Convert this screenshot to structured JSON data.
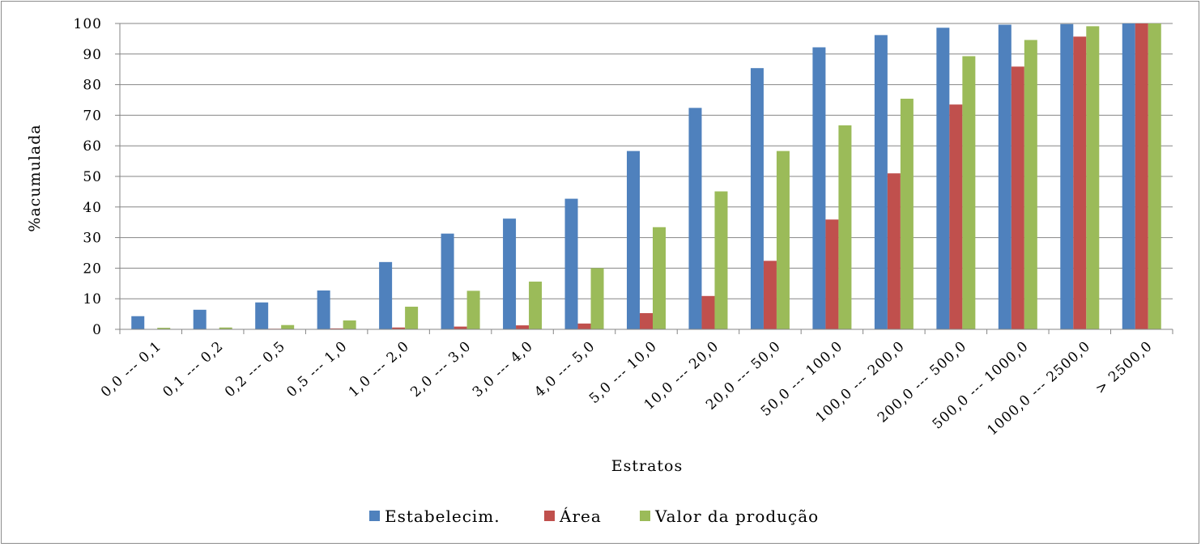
{
  "chart_data": {
    "type": "bar",
    "title": "",
    "xlabel": "Estratos",
    "ylabel": "%acumulada",
    "ylim": [
      0,
      100
    ],
    "yticks": [
      0,
      10,
      20,
      30,
      40,
      50,
      60,
      70,
      80,
      90,
      100
    ],
    "grid": "horizontal",
    "legend": "bottom",
    "categories": [
      "0,0 --- 0,1",
      "0,1 --- 0,2",
      "0,2 --- 0,5",
      "0,5 --- 1,0",
      "1,0 --- 2,0",
      "2,0 --- 3,0",
      "3,0 --- 4,0",
      "4,0 --- 5,0",
      "5,0 --- 10,0",
      "10,0 --- 20,0",
      "20,0 --- 50,0",
      "50,0 --- 100,0",
      "100,0 --- 200,0",
      "200,0 --- 500,0",
      "500,0 --- 1000,0",
      "1000,0 --- 2500,0",
      "> 2500,0"
    ],
    "series": [
      {
        "name": "Estabelecim.",
        "color": "#4f81bd",
        "values": [
          4.3,
          6.4,
          8.8,
          12.7,
          22.0,
          31.3,
          36.2,
          42.7,
          58.3,
          72.4,
          85.4,
          92.2,
          96.2,
          98.6,
          99.6,
          99.8,
          100
        ]
      },
      {
        "name": "Área",
        "color": "#c0504d",
        "values": [
          0.0,
          0.1,
          0.2,
          0.3,
          0.6,
          0.9,
          1.3,
          1.9,
          5.3,
          10.9,
          22.4,
          35.9,
          51.0,
          73.5,
          85.9,
          95.7,
          100
        ]
      },
      {
        "name": "Valor da produção",
        "color": "#9bbb59",
        "values": [
          0.5,
          0.6,
          1.4,
          2.9,
          7.4,
          12.6,
          15.6,
          20.0,
          33.4,
          45.1,
          58.3,
          66.7,
          75.4,
          89.3,
          94.6,
          99.1,
          100
        ]
      }
    ]
  },
  "colors": {
    "grid": "#868686",
    "axis": "#868686",
    "frame": "#8c8c8c"
  }
}
